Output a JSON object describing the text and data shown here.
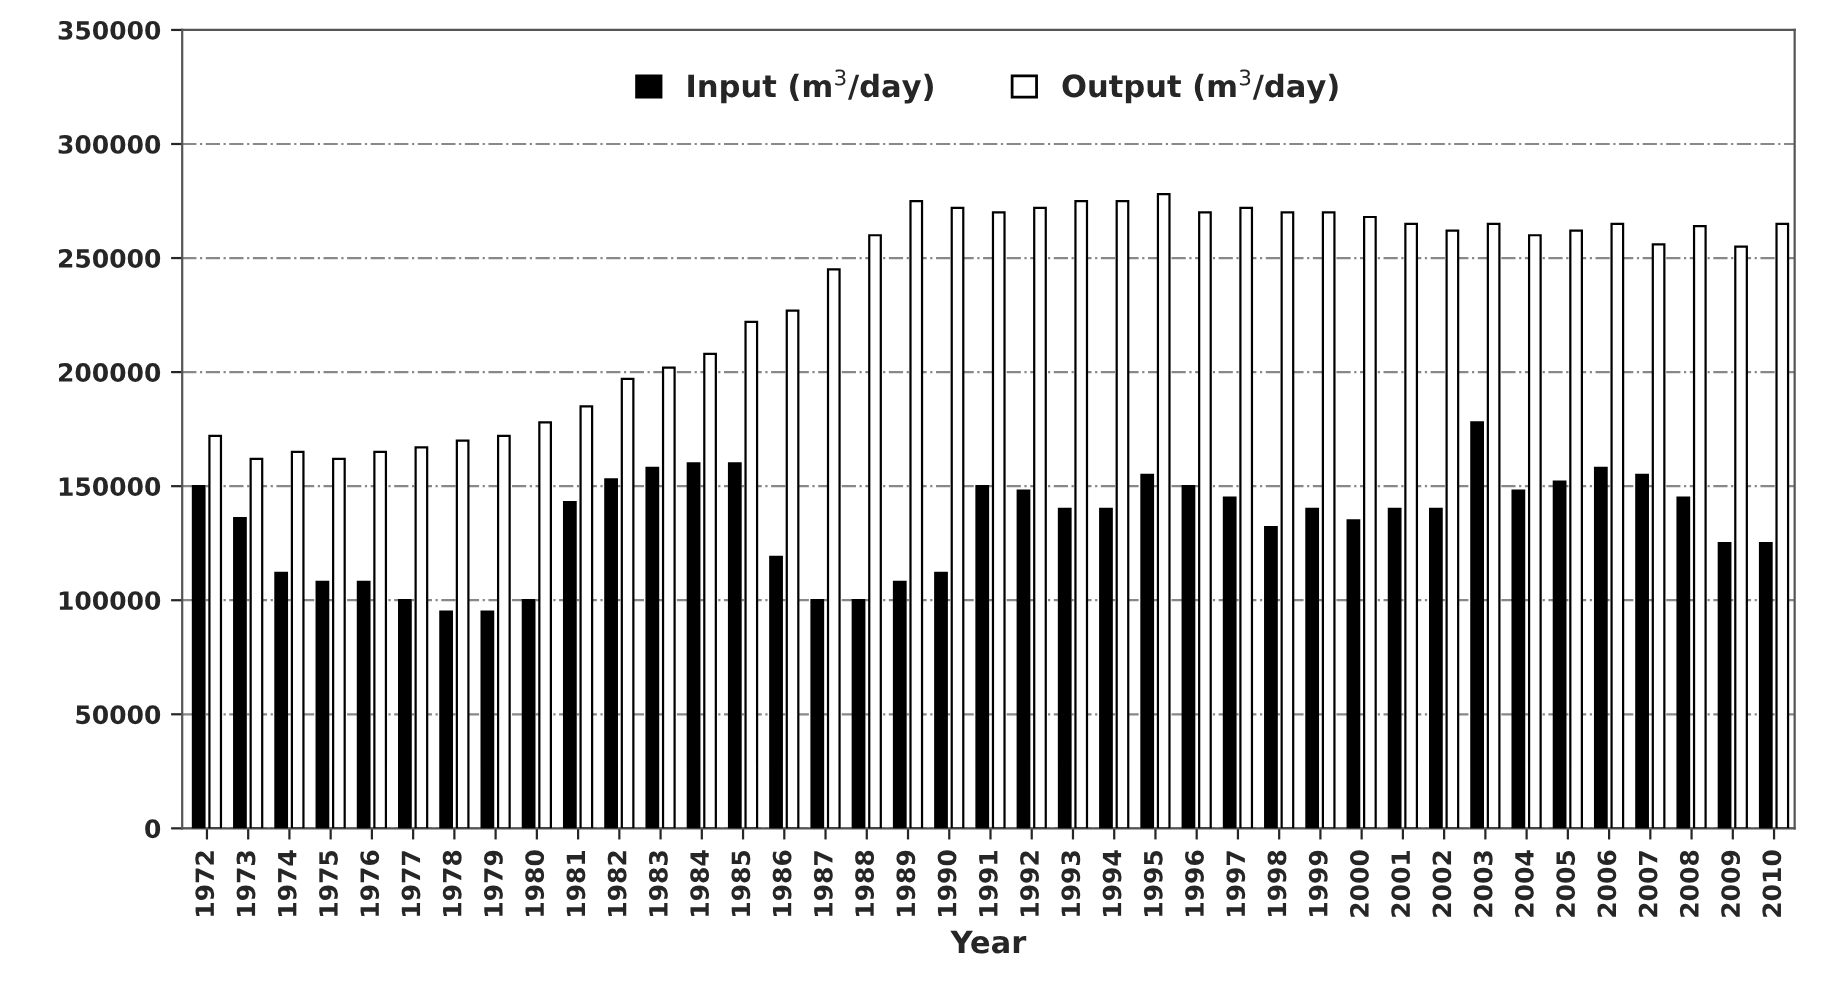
{
  "chart_data": {
    "type": "bar",
    "xlabel": "Year",
    "categories": [
      "1972",
      "1973",
      "1974",
      "1975",
      "1976",
      "1977",
      "1978",
      "1979",
      "1980",
      "1981",
      "1982",
      "1983",
      "1984",
      "1985",
      "1986",
      "1987",
      "1988",
      "1989",
      "1990",
      "1991",
      "1992",
      "1993",
      "1994",
      "1995",
      "1996",
      "1997",
      "1998",
      "1999",
      "2000",
      "2001",
      "2002",
      "2003",
      "2004",
      "2005",
      "2006",
      "2007",
      "2008",
      "2009",
      "2010"
    ],
    "series": [
      {
        "name": "Input (m$^{3}$/day)",
        "color": "#000000",
        "values": [
          150000,
          136000,
          112000,
          108000,
          108000,
          100000,
          95000,
          95000,
          100000,
          143000,
          153000,
          158000,
          160000,
          160000,
          119000,
          100000,
          100000,
          108000,
          112000,
          150000,
          148000,
          140000,
          140000,
          155000,
          150000,
          145000,
          132000,
          140000,
          135000,
          140000,
          140000,
          178000,
          148000,
          152000,
          158000,
          155000,
          145000,
          125000,
          125000
        ]
      },
      {
        "name": "Output (m$^{3}$/day)",
        "color": "#ffffff",
        "values": [
          172000,
          162000,
          165000,
          162000,
          165000,
          167000,
          170000,
          172000,
          178000,
          185000,
          197000,
          202000,
          208000,
          222000,
          227000,
          245000,
          260000,
          275000,
          272000,
          270000,
          272000,
          275000,
          275000,
          278000,
          270000,
          272000,
          270000,
          270000,
          268000,
          265000,
          262000,
          265000,
          260000,
          262000,
          265000,
          256000,
          264000,
          255000,
          265000
        ]
      }
    ],
    "ylim": [
      0,
      350000
    ],
    "yticks": [
      0,
      50000,
      100000,
      150000,
      200000,
      250000,
      300000,
      350000
    ],
    "grid": "y",
    "legend": "top"
  }
}
